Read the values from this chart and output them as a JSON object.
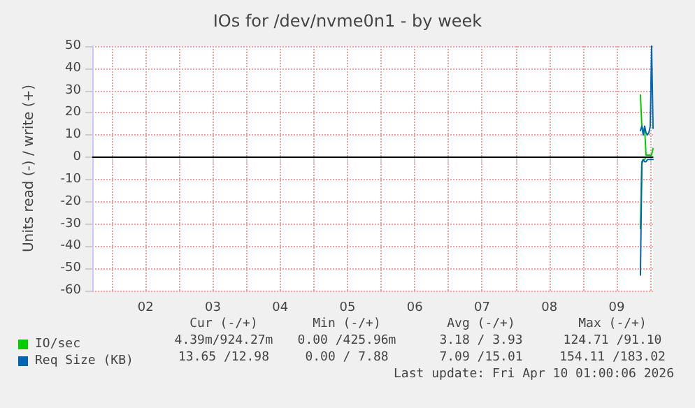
{
  "chart_data": {
    "type": "line",
    "title": "IOs for /dev/nvme0n1 - by week",
    "ylabel": "Units read (-) / write (+)",
    "xlim": [
      "2026-04-01T17:00",
      "2026-04-10T01:00"
    ],
    "xticks": [
      {
        "value": "2026-04-02T00:00",
        "label": null
      },
      {
        "value": "2026-04-02T12:00",
        "label": "02"
      },
      {
        "value": "2026-04-03T00:00",
        "label": null
      },
      {
        "value": "2026-04-03T12:00",
        "label": "03"
      },
      {
        "value": "2026-04-04T00:00",
        "label": null
      },
      {
        "value": "2026-04-04T12:00",
        "label": "04"
      },
      {
        "value": "2026-04-05T00:00",
        "label": null
      },
      {
        "value": "2026-04-05T12:00",
        "label": "05"
      },
      {
        "value": "2026-04-06T00:00",
        "label": null
      },
      {
        "value": "2026-04-06T12:00",
        "label": "06"
      },
      {
        "value": "2026-04-07T00:00",
        "label": null
      },
      {
        "value": "2026-04-07T12:00",
        "label": "07"
      },
      {
        "value": "2026-04-08T00:00",
        "label": null
      },
      {
        "value": "2026-04-08T12:00",
        "label": "08"
      },
      {
        "value": "2026-04-09T00:00",
        "label": null
      },
      {
        "value": "2026-04-09T12:00",
        "label": "09"
      },
      {
        "value": "2026-04-10T00:00",
        "label": null
      }
    ],
    "ylim": [
      -60,
      50
    ],
    "yticks": [
      -60,
      -50,
      -40,
      -30,
      -20,
      -10,
      0,
      10,
      20,
      30,
      40,
      50
    ],
    "grid": true,
    "legend": "bottom left",
    "marker": "none",
    "line_style": "solid",
    "x": [
      "2026-04-09T20:30",
      "2026-04-09T21:00",
      "2026-04-09T21:30",
      "2026-04-09T22:00",
      "2026-04-09T22:30",
      "2026-04-09T23:00",
      "2026-04-09T23:30",
      "2026-04-10T00:00",
      "2026-04-10T00:30",
      "2026-04-10T01:00"
    ],
    "series": [
      {
        "color": "#00cc00",
        "values": [
          -32,
          -2,
          -1,
          -1,
          0,
          0,
          0,
          0,
          0,
          0
        ]
      },
      {
        "name": "IO/sec",
        "color": "#00cc00",
        "values": [
          28,
          14,
          12,
          13,
          1,
          1,
          1,
          1,
          1,
          4
        ]
      },
      {
        "color": "#0066b3",
        "values": [
          -53,
          -3,
          -1,
          -2,
          -2,
          -1,
          -1,
          -1,
          -1,
          -1
        ]
      },
      {
        "name": "Req Size (KB)",
        "color": "#0066b3",
        "values": [
          12,
          14,
          10,
          14,
          11,
          10,
          11,
          14,
          50,
          13
        ]
      }
    ],
    "ref_lines": [
      {
        "axis": "y",
        "value": 0,
        "color": "#000000"
      }
    ],
    "annotations": [
      "Cur (-/+)",
      "Min (-/+)",
      "Avg (-/+)",
      "Max (-/+)",
      "4.39m/924.27m",
      "0.00 /425.96m",
      "3.18 / 3.93",
      "124.71 /91.10",
      "13.65 /12.98",
      "0.00 / 7.88",
      "7.09 /15.01",
      "154.11 /183.02",
      "Last update: Fri Apr 10 01:00:06 2026"
    ]
  }
}
